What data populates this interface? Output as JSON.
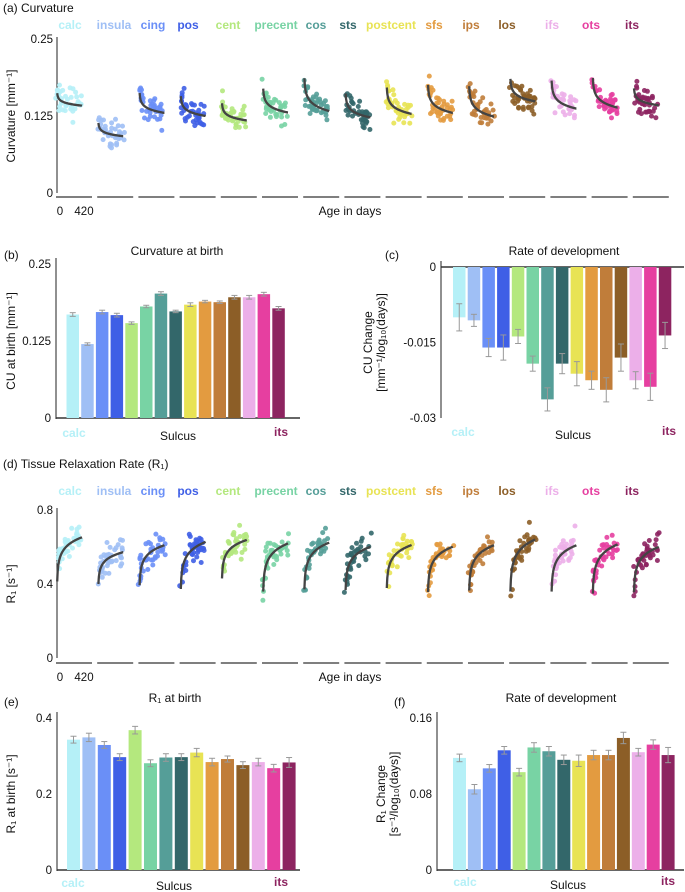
{
  "sulci": [
    "calc",
    "insula",
    "cing",
    "pos",
    "cent",
    "precent",
    "cos",
    "sts",
    "postcent",
    "sfs",
    "ips",
    "los",
    "ifs",
    "ots",
    "its"
  ],
  "colors": [
    "#b5f0f7",
    "#9fbff5",
    "#6a8ff7",
    "#3f5fe6",
    "#b4e87e",
    "#78d3a4",
    "#559e98",
    "#33676a",
    "#e8e354",
    "#e39b40",
    "#c07d3a",
    "#8c5e27",
    "#ecafe9",
    "#e63fa0",
    "#8d2460"
  ],
  "chart_data": [
    {
      "panel": "(a)",
      "type": "scatter",
      "title": "(a) Curvature",
      "ylabel": "Curvature [mm⁻¹]",
      "xlabel": "Age in days",
      "xticks": [
        "0",
        "420"
      ],
      "xlim": [
        0,
        420
      ],
      "yticks": [
        "0",
        "0.125",
        "0.25"
      ],
      "ylim": [
        0,
        0.25
      ],
      "fit": "birth value + rate × log10(age), per sulcus (panels b, c)"
    },
    {
      "panel": "(b)",
      "type": "bar",
      "title": "Curvature at birth",
      "ylabel": "CU at birth [mm⁻¹]",
      "xlabel": "Sulcus",
      "first_label": "calc",
      "last_label": "its",
      "yticks": [
        "0",
        "0.125",
        "0.25"
      ],
      "ylim": [
        0,
        0.25
      ],
      "values": [
        0.168,
        0.12,
        0.172,
        0.167,
        0.154,
        0.181,
        0.202,
        0.173,
        0.184,
        0.189,
        0.188,
        0.196,
        0.196,
        0.201,
        0.178
      ],
      "errors": [
        0.003,
        0.002,
        0.003,
        0.003,
        0.002,
        0.002,
        0.003,
        0.002,
        0.003,
        0.002,
        0.002,
        0.003,
        0.003,
        0.003,
        0.003
      ]
    },
    {
      "panel": "(c)",
      "type": "bar",
      "title": "Rate of development",
      "ylabel": "CU Change",
      "ylabel2": "[mm⁻¹/log₁₀(days)]",
      "xlabel": "Sulcus",
      "first_label": "calc",
      "last_label": "its",
      "yticks": [
        "0",
        "-0.015",
        "-0.03"
      ],
      "ylim": [
        -0.03,
        0
      ],
      "values": [
        -0.01,
        -0.0106,
        -0.016,
        -0.016,
        -0.0138,
        -0.0192,
        -0.0263,
        -0.0192,
        -0.0212,
        -0.0225,
        -0.0244,
        -0.018,
        -0.0225,
        -0.0238,
        -0.0136
      ],
      "errors": [
        0.0027,
        0.0012,
        0.0018,
        0.0025,
        0.0014,
        0.0015,
        0.0023,
        0.002,
        0.0024,
        0.0018,
        0.0024,
        0.0027,
        0.0017,
        0.0027,
        0.0026
      ]
    },
    {
      "panel": "(d)",
      "type": "scatter",
      "title": "(d) Tissue Relaxation Rate (R₁)",
      "ylabel": "R₁ [s⁻¹]",
      "xlabel": "Age in days",
      "xticks": [
        "0",
        "420"
      ],
      "xlim": [
        0,
        420
      ],
      "yticks": [
        "0",
        "0.4",
        "0.8"
      ],
      "ylim": [
        0,
        0.8
      ],
      "fit": "birth value + rate × log10(age), per sulcus (panels e, f)"
    },
    {
      "panel": "(e)",
      "type": "bar",
      "title": "R₁ at birth",
      "ylabel": "R₁ at birth [s⁻¹]",
      "xlabel": "Sulcus",
      "first_label": "calc",
      "last_label": "its",
      "yticks": [
        "0",
        "0.2",
        "0.4"
      ],
      "ylim": [
        0,
        0.4
      ],
      "values": [
        0.343,
        0.349,
        0.329,
        0.297,
        0.368,
        0.281,
        0.296,
        0.297,
        0.309,
        0.284,
        0.292,
        0.276,
        0.284,
        0.268,
        0.283
      ],
      "errors": [
        0.009,
        0.011,
        0.009,
        0.009,
        0.01,
        0.009,
        0.01,
        0.009,
        0.011,
        0.01,
        0.008,
        0.009,
        0.01,
        0.01,
        0.013
      ]
    },
    {
      "panel": "(f)",
      "type": "bar",
      "title": "Rate of development",
      "ylabel": "R₁ Change",
      "ylabel2": "[s⁻¹/log₁₀(days)]",
      "xlabel": "Sulcus",
      "first_label": "calc",
      "last_label": "its",
      "yticks": [
        "0",
        "0.08",
        "0.16"
      ],
      "ylim": [
        0,
        0.16
      ],
      "values": [
        0.118,
        0.085,
        0.107,
        0.126,
        0.103,
        0.129,
        0.125,
        0.116,
        0.115,
        0.121,
        0.121,
        0.139,
        0.124,
        0.132,
        0.121
      ],
      "errors": [
        0.004,
        0.005,
        0.004,
        0.004,
        0.004,
        0.005,
        0.005,
        0.005,
        0.006,
        0.005,
        0.005,
        0.006,
        0.004,
        0.005,
        0.008
      ]
    }
  ]
}
